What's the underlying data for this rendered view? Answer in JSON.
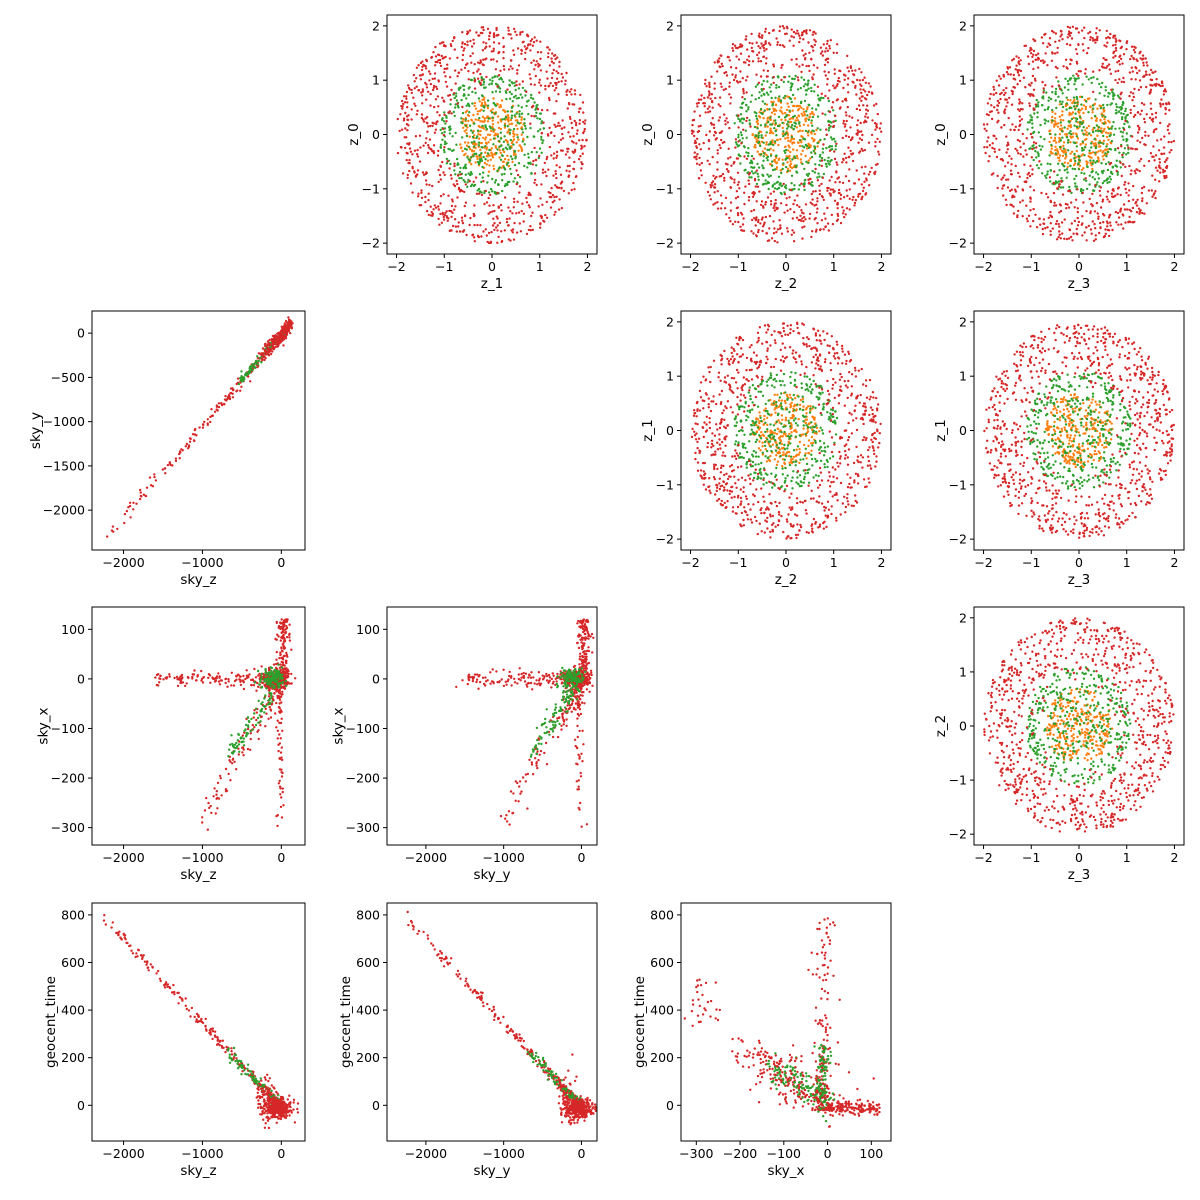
{
  "colors": {
    "outer": "#d62728",
    "middle": "#2ca02c",
    "inner": "#ff7f0e"
  },
  "chart_data": [
    {
      "id": "z1-z0",
      "type": "scatter",
      "kind": "rings",
      "xlabel": "z_1",
      "ylabel": "z_0",
      "xlim": [
        -2.2,
        2.2
      ],
      "ylim": [
        -2.2,
        2.2
      ],
      "xticks": [
        -2,
        -1,
        0,
        1,
        2
      ],
      "yticks": [
        -2,
        -1,
        0,
        1,
        2
      ],
      "xtick_labels": [
        "−2",
        "−1",
        "0",
        "1",
        "2"
      ],
      "ytick_labels": [
        "−2",
        "−1",
        "0",
        "1",
        "2"
      ],
      "grid": false,
      "legend": "none"
    },
    {
      "id": "z2-z0",
      "type": "scatter",
      "kind": "rings",
      "xlabel": "z_2",
      "ylabel": "z_0",
      "xlim": [
        -2.2,
        2.2
      ],
      "ylim": [
        -2.2,
        2.2
      ],
      "xticks": [
        -2,
        -1,
        0,
        1,
        2
      ],
      "yticks": [
        -2,
        -1,
        0,
        1,
        2
      ],
      "xtick_labels": [
        "−2",
        "−1",
        "0",
        "1",
        "2"
      ],
      "ytick_labels": [
        "−2",
        "−1",
        "0",
        "1",
        "2"
      ],
      "grid": false,
      "legend": "none"
    },
    {
      "id": "z3-z0",
      "type": "scatter",
      "kind": "rings",
      "xlabel": "z_3",
      "ylabel": "z_0",
      "xlim": [
        -2.2,
        2.2
      ],
      "ylim": [
        -2.2,
        2.2
      ],
      "xticks": [
        -2,
        -1,
        0,
        1,
        2
      ],
      "yticks": [
        -2,
        -1,
        0,
        1,
        2
      ],
      "xtick_labels": [
        "−2",
        "−1",
        "0",
        "1",
        "2"
      ],
      "ytick_labels": [
        "−2",
        "−1",
        "0",
        "1",
        "2"
      ],
      "grid": false,
      "legend": "none"
    },
    {
      "id": "skyz-skyy",
      "type": "scatter",
      "kind": "line",
      "xlabel": "sky_z",
      "ylabel": "sky_y",
      "xlim": [
        -2400,
        300
      ],
      "ylim": [
        -2450,
        250
      ],
      "xticks": [
        -2000,
        -1000,
        0
      ],
      "yticks": [
        -2000,
        -1500,
        -1000,
        -500,
        0
      ],
      "xtick_labels": [
        "−2000",
        "−1000",
        "0"
      ],
      "ytick_labels": [
        "−2000",
        "−1500",
        "−1000",
        "−500",
        "0"
      ],
      "grid": false,
      "legend": "none"
    },
    {
      "id": "z2-z1",
      "type": "scatter",
      "kind": "rings",
      "xlabel": "z_2",
      "ylabel": "z_1",
      "xlim": [
        -2.2,
        2.2
      ],
      "ylim": [
        -2.2,
        2.2
      ],
      "xticks": [
        -2,
        -1,
        0,
        1,
        2
      ],
      "yticks": [
        -2,
        -1,
        0,
        1,
        2
      ],
      "xtick_labels": [
        "−2",
        "−1",
        "0",
        "1",
        "2"
      ],
      "ytick_labels": [
        "−2",
        "−1",
        "0",
        "1",
        "2"
      ],
      "grid": false,
      "legend": "none"
    },
    {
      "id": "z3-z1",
      "type": "scatter",
      "kind": "rings",
      "xlabel": "z_3",
      "ylabel": "z_1",
      "xlim": [
        -2.2,
        2.2
      ],
      "ylim": [
        -2.2,
        2.2
      ],
      "xticks": [
        -2,
        -1,
        0,
        1,
        2
      ],
      "yticks": [
        -2,
        -1,
        0,
        1,
        2
      ],
      "xtick_labels": [
        "−2",
        "−1",
        "0",
        "1",
        "2"
      ],
      "ytick_labels": [
        "−2",
        "−1",
        "0",
        "1",
        "2"
      ],
      "grid": false,
      "legend": "none"
    },
    {
      "id": "skyz-skyx",
      "type": "scatter",
      "kind": "fan",
      "xlabel": "sky_z",
      "ylabel": "sky_x",
      "xlim": [
        -2400,
        300
      ],
      "ylim": [
        -335,
        145
      ],
      "xticks": [
        -2000,
        -1000,
        0
      ],
      "yticks": [
        -300,
        -200,
        -100,
        0,
        100
      ],
      "xtick_labels": [
        "−2000",
        "−1000",
        "0"
      ],
      "ytick_labels": [
        "−300",
        "−200",
        "−100",
        "0",
        "100"
      ],
      "grid": false,
      "legend": "none"
    },
    {
      "id": "skyy-skyx",
      "type": "scatter",
      "kind": "fan",
      "xlabel": "sky_y",
      "ylabel": "sky_x",
      "xlim": [
        -2500,
        200
      ],
      "ylim": [
        -335,
        145
      ],
      "xticks": [
        -2000,
        -1000,
        0
      ],
      "yticks": [
        -300,
        -200,
        -100,
        0,
        100
      ],
      "xtick_labels": [
        "−2000",
        "−1000",
        "0"
      ],
      "ytick_labels": [
        "−300",
        "−200",
        "−100",
        "0",
        "100"
      ],
      "grid": false,
      "legend": "none"
    },
    {
      "id": "z3-z2",
      "type": "scatter",
      "kind": "rings",
      "xlabel": "z_3",
      "ylabel": "z_2",
      "xlim": [
        -2.2,
        2.2
      ],
      "ylim": [
        -2.2,
        2.2
      ],
      "xticks": [
        -2,
        -1,
        0,
        1,
        2
      ],
      "yticks": [
        -2,
        -1,
        0,
        1,
        2
      ],
      "xtick_labels": [
        "−2",
        "−1",
        "0",
        "1",
        "2"
      ],
      "ytick_labels": [
        "−2",
        "−1",
        "0",
        "1",
        "2"
      ],
      "grid": false,
      "legend": "none"
    },
    {
      "id": "skyz-geocent",
      "type": "scatter",
      "kind": "neg",
      "xlabel": "sky_z",
      "ylabel": "geocent_time",
      "xlim": [
        -2400,
        300
      ],
      "ylim": [
        -150,
        850
      ],
      "xticks": [
        -2000,
        -1000,
        0
      ],
      "yticks": [
        0,
        200,
        400,
        600,
        800
      ],
      "xtick_labels": [
        "−2000",
        "−1000",
        "0"
      ],
      "ytick_labels": [
        "0",
        "200",
        "400",
        "600",
        "800"
      ],
      "grid": false,
      "legend": "none"
    },
    {
      "id": "skyy-geocent",
      "type": "scatter",
      "kind": "neg",
      "xlabel": "sky_y",
      "ylabel": "geocent_time",
      "xlim": [
        -2500,
        200
      ],
      "ylim": [
        -150,
        850
      ],
      "xticks": [
        -2000,
        -1000,
        0
      ],
      "yticks": [
        0,
        200,
        400,
        600,
        800
      ],
      "xtick_labels": [
        "−2000",
        "−1000",
        "0"
      ],
      "ytick_labels": [
        "0",
        "200",
        "400",
        "600",
        "800"
      ],
      "grid": false,
      "legend": "none"
    },
    {
      "id": "skyx-geocent",
      "type": "scatter",
      "kind": "vee",
      "xlabel": "sky_x",
      "ylabel": "geocent_time",
      "xlim": [
        -335,
        145
      ],
      "ylim": [
        -150,
        850
      ],
      "xticks": [
        -300,
        -200,
        -100,
        0,
        100
      ],
      "yticks": [
        0,
        200,
        400,
        600,
        800
      ],
      "xtick_labels": [
        "−300",
        "−200",
        "−100",
        "0",
        "100"
      ],
      "ytick_labels": [
        "0",
        "200",
        "400",
        "600",
        "800"
      ],
      "grid": false,
      "legend": "none"
    }
  ]
}
